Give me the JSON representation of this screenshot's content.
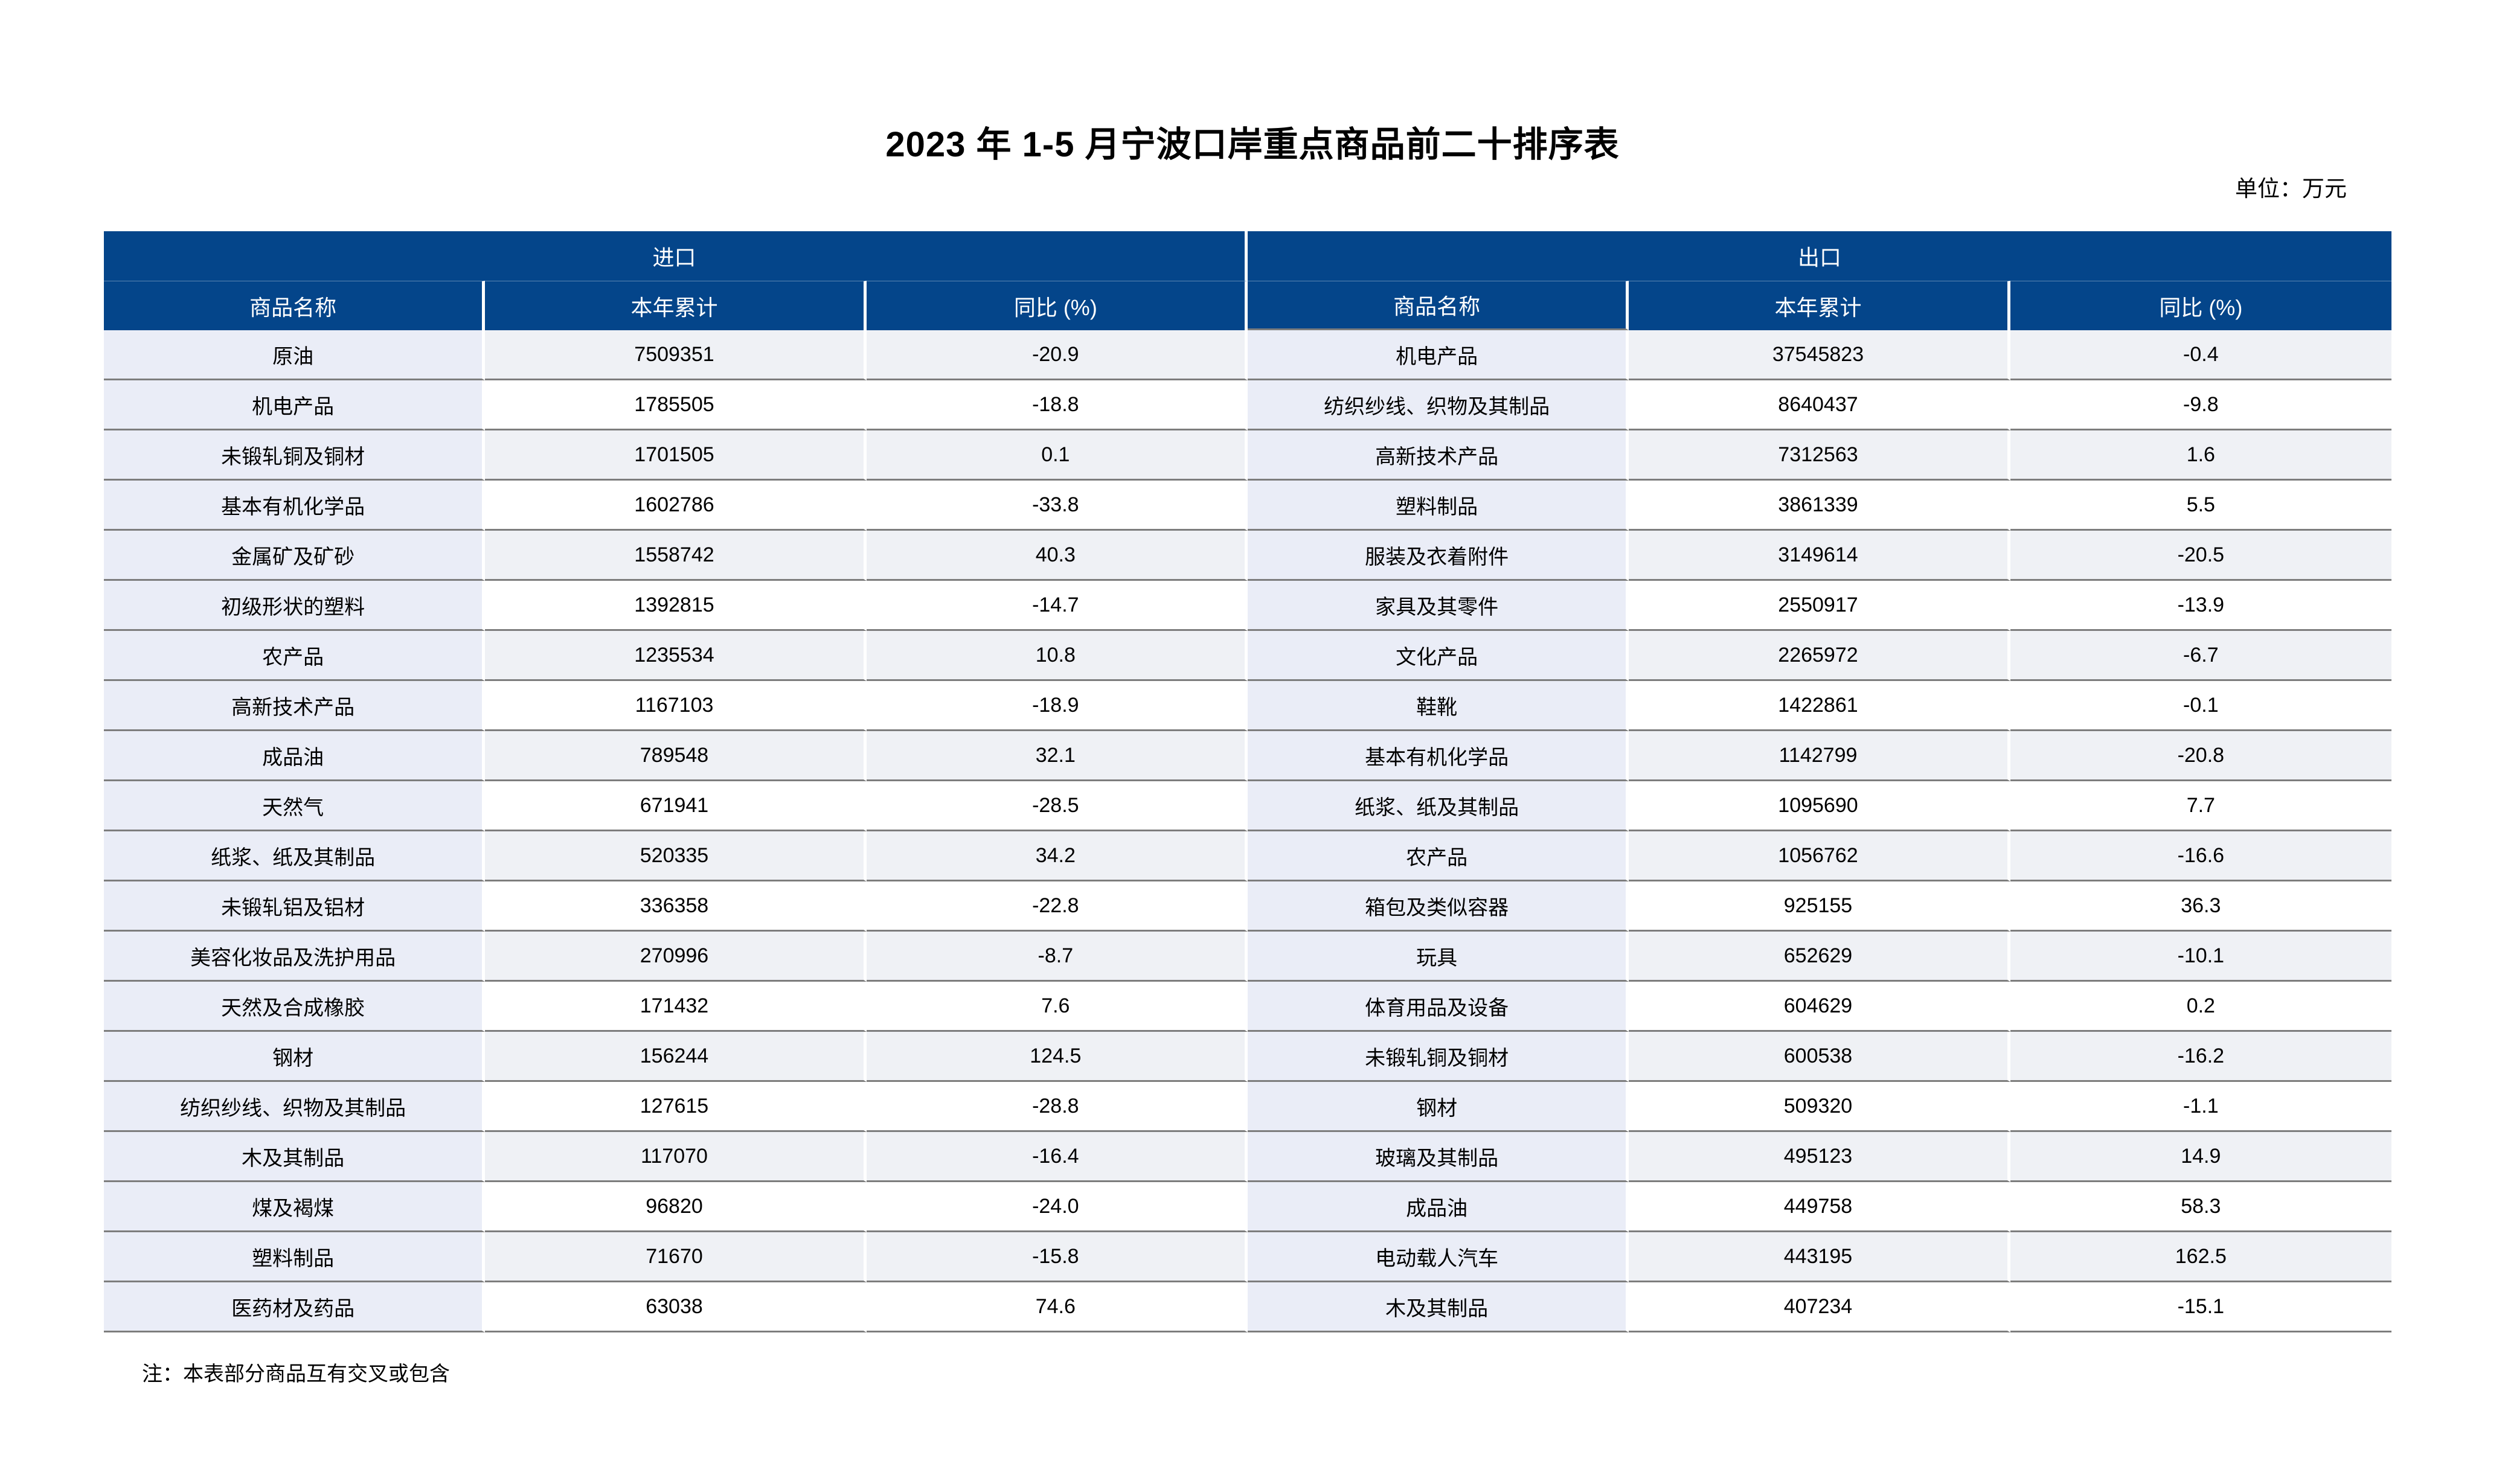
{
  "title": "2023 年 1-5 月宁波口岸重点商品前二十排序表",
  "unit_label": "单位：万元",
  "footnote": "注：本表部分商品互有交叉或包含",
  "colors": {
    "header_bg": "#04458A",
    "header_text": "#FFFFFF",
    "name_column_bg": "#EAEDF7",
    "stripe_row_bg": "#EFF1F5",
    "row_border": "#7D7D7D"
  },
  "sections": [
    {
      "title": "进口",
      "columns": [
        "商品名称",
        "本年累计",
        "同比 (%)"
      ],
      "rows": [
        {
          "name": "原油",
          "ytd": "7509351",
          "yoy": "-20.9"
        },
        {
          "name": "机电产品",
          "ytd": "1785505",
          "yoy": "-18.8"
        },
        {
          "name": "未锻轧铜及铜材",
          "ytd": "1701505",
          "yoy": "0.1"
        },
        {
          "name": "基本有机化学品",
          "ytd": "1602786",
          "yoy": "-33.8"
        },
        {
          "name": "金属矿及矿砂",
          "ytd": "1558742",
          "yoy": "40.3"
        },
        {
          "name": "初级形状的塑料",
          "ytd": "1392815",
          "yoy": "-14.7"
        },
        {
          "name": "农产品",
          "ytd": "1235534",
          "yoy": "10.8"
        },
        {
          "name": "高新技术产品",
          "ytd": "1167103",
          "yoy": "-18.9"
        },
        {
          "name": "成品油",
          "ytd": "789548",
          "yoy": "32.1"
        },
        {
          "name": "天然气",
          "ytd": "671941",
          "yoy": "-28.5"
        },
        {
          "name": "纸浆、纸及其制品",
          "ytd": "520335",
          "yoy": "34.2"
        },
        {
          "name": "未锻轧铝及铝材",
          "ytd": "336358",
          "yoy": "-22.8"
        },
        {
          "name": "美容化妆品及洗护用品",
          "ytd": "270996",
          "yoy": "-8.7"
        },
        {
          "name": "天然及合成橡胶",
          "ytd": "171432",
          "yoy": "7.6"
        },
        {
          "name": "钢材",
          "ytd": "156244",
          "yoy": "124.5"
        },
        {
          "name": "纺织纱线、织物及其制品",
          "ytd": "127615",
          "yoy": "-28.8"
        },
        {
          "name": "木及其制品",
          "ytd": "117070",
          "yoy": "-16.4"
        },
        {
          "name": "煤及褐煤",
          "ytd": "96820",
          "yoy": "-24.0"
        },
        {
          "name": "塑料制品",
          "ytd": "71670",
          "yoy": "-15.8"
        },
        {
          "name": "医药材及药品",
          "ytd": "63038",
          "yoy": "74.6"
        }
      ]
    },
    {
      "title": "出口",
      "columns": [
        "商品名称",
        "本年累计",
        "同比 (%)"
      ],
      "rows": [
        {
          "name": "机电产品",
          "ytd": "37545823",
          "yoy": "-0.4"
        },
        {
          "name": "纺织纱线、织物及其制品",
          "ytd": "8640437",
          "yoy": "-9.8"
        },
        {
          "name": "高新技术产品",
          "ytd": "7312563",
          "yoy": "1.6"
        },
        {
          "name": "塑料制品",
          "ytd": "3861339",
          "yoy": "5.5"
        },
        {
          "name": "服装及衣着附件",
          "ytd": "3149614",
          "yoy": "-20.5"
        },
        {
          "name": "家具及其零件",
          "ytd": "2550917",
          "yoy": "-13.9"
        },
        {
          "name": "文化产品",
          "ytd": "2265972",
          "yoy": "-6.7"
        },
        {
          "name": "鞋靴",
          "ytd": "1422861",
          "yoy": "-0.1"
        },
        {
          "name": "基本有机化学品",
          "ytd": "1142799",
          "yoy": "-20.8"
        },
        {
          "name": "纸浆、纸及其制品",
          "ytd": "1095690",
          "yoy": "7.7"
        },
        {
          "name": "农产品",
          "ytd": "1056762",
          "yoy": "-16.6"
        },
        {
          "name": "箱包及类似容器",
          "ytd": "925155",
          "yoy": "36.3"
        },
        {
          "name": "玩具",
          "ytd": "652629",
          "yoy": "-10.1"
        },
        {
          "name": "体育用品及设备",
          "ytd": "604629",
          "yoy": "0.2"
        },
        {
          "name": "未锻轧铜及铜材",
          "ytd": "600538",
          "yoy": "-16.2"
        },
        {
          "name": "钢材",
          "ytd": "509320",
          "yoy": "-1.1"
        },
        {
          "name": "玻璃及其制品",
          "ytd": "495123",
          "yoy": "14.9"
        },
        {
          "name": "成品油",
          "ytd": "449758",
          "yoy": "58.3"
        },
        {
          "name": "电动载人汽车",
          "ytd": "443195",
          "yoy": "162.5"
        },
        {
          "name": "木及其制品",
          "ytd": "407234",
          "yoy": "-15.1"
        }
      ]
    }
  ]
}
